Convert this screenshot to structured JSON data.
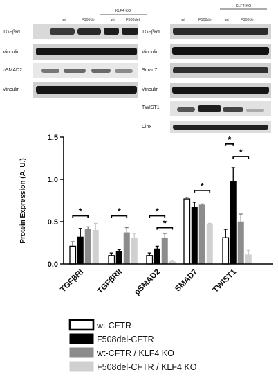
{
  "blots": {
    "left": {
      "headers": [
        "wt",
        "F508del",
        "wt",
        "F508del"
      ],
      "group_label": "KLF4 KO",
      "rows": [
        "TGFβRI",
        "Vinculin",
        "pSMAD2",
        "Vinculin"
      ]
    },
    "right": {
      "headers": [
        "wt",
        "F508del",
        "wt",
        "F508del"
      ],
      "group_label": "KLF4 KO",
      "rows": [
        "TGFβRII",
        "Vinculin",
        "Smad7",
        "Vinculin",
        "TWIST1",
        "Clnx"
      ]
    }
  },
  "chart_data": {
    "type": "bar",
    "ylabel": "Protein Expression (A. U.)",
    "ylim": [
      0,
      1.5
    ],
    "yticks": [
      "0.0",
      "0.5",
      "1.0",
      "1.5"
    ],
    "categories": [
      "TGFβRI",
      "TGFβRII",
      "pSMAD2",
      "SMAD7",
      "TWIST1"
    ],
    "series": [
      {
        "name": "wt-CFTR",
        "color": "#ffffff",
        "values": [
          0.21,
          0.1,
          0.1,
          0.77,
          0.31
        ],
        "errors": [
          0.05,
          0.03,
          0.03,
          0.02,
          0.1
        ]
      },
      {
        "name": "F508del-CFTR",
        "color": "#000000",
        "values": [
          0.32,
          0.15,
          0.18,
          0.67,
          0.98
        ],
        "errors": [
          0.1,
          0.02,
          0.03,
          0.06,
          0.16
        ]
      },
      {
        "name": "wt-CFTR / KLF4 KO",
        "color": "#8c8c8c",
        "values": [
          0.41,
          0.37,
          0.31,
          0.7,
          0.5
        ],
        "errors": [
          0.03,
          0.06,
          0.05,
          0.01,
          0.09
        ]
      },
      {
        "name": "F508del-CFTR /  KLF4 KO",
        "color": "#d0d0d0",
        "values": [
          0.4,
          0.31,
          0.03,
          0.47,
          0.11
        ],
        "errors": [
          0.08,
          0.05,
          0.01,
          0.01,
          0.05
        ]
      }
    ],
    "significance": [
      {
        "category": 0,
        "from": 0,
        "to": 2,
        "y": 0.57,
        "label": "*"
      },
      {
        "category": 1,
        "from": 0,
        "to": 2,
        "y": 0.57,
        "label": "*"
      },
      {
        "category": 2,
        "from": 0,
        "to": 2,
        "y": 0.57,
        "label": "*"
      },
      {
        "category": 2,
        "from": 1,
        "to": 3,
        "y": 0.43,
        "label": "*"
      },
      {
        "category": 3,
        "from": 1,
        "to": 3,
        "y": 0.87,
        "label": "*"
      },
      {
        "category": 4,
        "from": 0,
        "to": 1,
        "y": 1.42,
        "label": "*"
      },
      {
        "category": 4,
        "from": 1,
        "to": 3,
        "y": 1.27,
        "label": "*"
      }
    ]
  }
}
